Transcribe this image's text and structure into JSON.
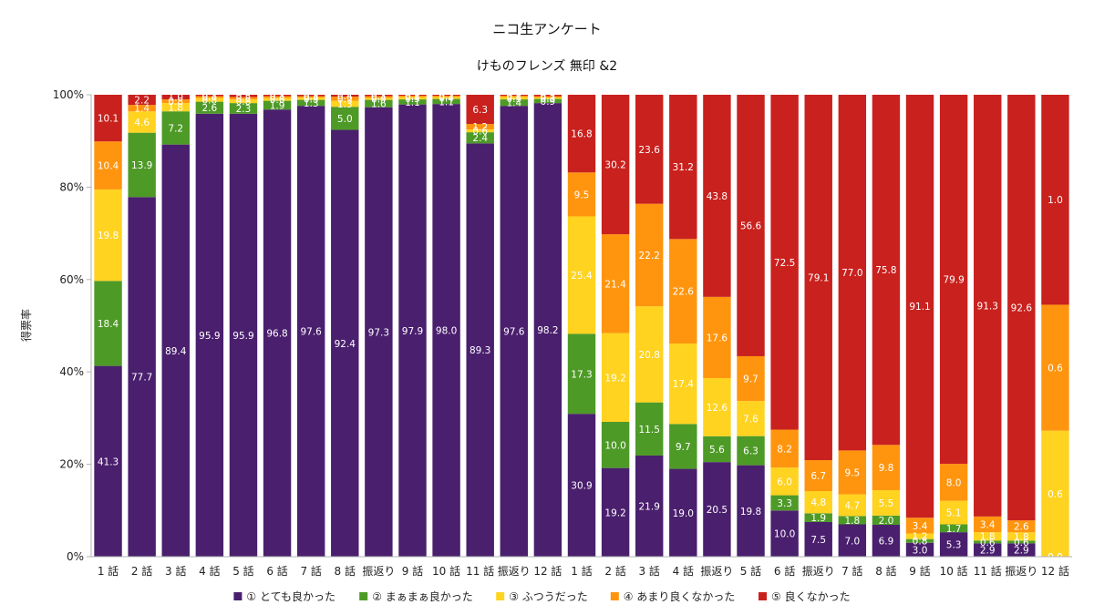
{
  "chart_data": {
    "type": "bar",
    "stacked": true,
    "percent": true,
    "title": "ニコ生アンケート",
    "subtitle": "けものフレンズ 無印 &2",
    "ylabel": "得票率",
    "xlabel": "",
    "ylim": [
      0,
      100
    ],
    "yticks": [
      "0%",
      "20%",
      "40%",
      "60%",
      "80%",
      "100%"
    ],
    "grid": false,
    "legend_position": "bottom",
    "categories": [
      "1 話",
      "2 話",
      "3 話",
      "4 話",
      "5 話",
      "6 話",
      "7 話",
      "8 話",
      "振返り",
      "9 話",
      "10 話",
      "11 話",
      "振返り",
      "12 話",
      "1 話",
      "2 話",
      "3 話",
      "4 話",
      "振返り",
      "5 話",
      "6 話",
      "振返り",
      "7 話",
      "8 話",
      "9 話",
      "10 話",
      "11 話",
      "振返り",
      "12 話"
    ],
    "series": [
      {
        "name": "① とても良かった",
        "color": "#4a1f6e",
        "values": [
          41.3,
          77.7,
          89.4,
          95.9,
          95.9,
          96.8,
          97.6,
          92.4,
          97.3,
          97.9,
          98.0,
          89.3,
          97.6,
          98.2,
          30.9,
          19.2,
          21.9,
          19.0,
          20.5,
          19.8,
          10.0,
          7.5,
          7.0,
          6.9,
          3.0,
          5.3,
          2.9,
          2.9,
          0.0
        ]
      },
      {
        "name": "② まぁまぁ良かった",
        "color": "#4e9a27",
        "values": [
          18.4,
          13.9,
          7.2,
          2.6,
          2.3,
          1.9,
          1.3,
          5.0,
          1.6,
          1.1,
          1.1,
          2.4,
          1.4,
          0.9,
          17.3,
          10.0,
          11.5,
          9.7,
          5.6,
          6.3,
          3.3,
          1.9,
          1.8,
          2.0,
          0.8,
          1.7,
          0.6,
          0.6,
          0.0
        ]
      },
      {
        "name": "③ ふつうだった",
        "color": "#ffd320",
        "values": [
          19.8,
          4.6,
          1.8,
          0.8,
          0.8,
          0.6,
          0.5,
          1.3,
          0.4,
          0.5,
          0.4,
          0.6,
          0.5,
          0.3,
          25.4,
          19.2,
          20.8,
          17.4,
          12.6,
          7.6,
          6.0,
          4.8,
          4.7,
          5.5,
          1.2,
          5.1,
          1.8,
          1.8,
          0.6
        ]
      },
      {
        "name": "④ あまり良くなかった",
        "color": "#ff950e",
        "values": [
          10.4,
          1.4,
          0.8,
          0.4,
          0.5,
          0.4,
          0.3,
          0.9,
          0.4,
          0.3,
          0.3,
          1.2,
          0.3,
          0.3,
          9.5,
          21.4,
          22.2,
          22.6,
          17.6,
          9.7,
          8.2,
          6.7,
          9.5,
          9.8,
          3.4,
          8.0,
          3.4,
          2.6,
          0.6
        ]
      },
      {
        "name": "⑤ 良くなかった",
        "color": "#c9211e",
        "values": [
          10.1,
          2.2,
          1.0,
          0.3,
          0.5,
          0.3,
          0.3,
          0.4,
          0.3,
          0.2,
          0.2,
          6.3,
          0.2,
          0.3,
          16.8,
          30.2,
          23.6,
          31.2,
          43.8,
          56.6,
          72.5,
          79.1,
          77.0,
          75.8,
          91.1,
          79.9,
          91.3,
          92.6,
          1.0
        ]
      }
    ]
  }
}
